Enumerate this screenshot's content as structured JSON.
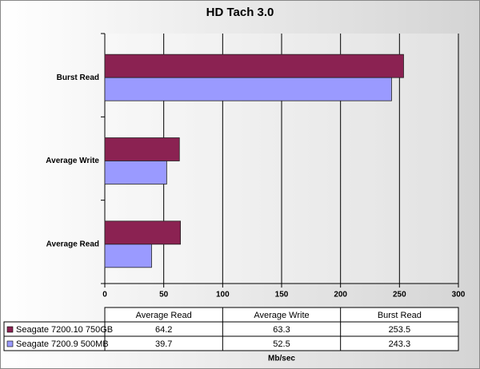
{
  "chart_data": {
    "type": "bar",
    "orientation": "horizontal",
    "title": "HD Tach 3.0",
    "x_label": "Mb/sec",
    "categories": [
      "Average Read",
      "Average Write",
      "Burst Read"
    ],
    "series": [
      {
        "name": "Seagate 7200.10 750GB",
        "color": "#8b2252",
        "values": [
          64.2,
          63.3,
          253.5
        ]
      },
      {
        "name": "Seagate 7200.9 500MB",
        "color": "#9a9aff",
        "values": [
          39.7,
          52.5,
          243.3
        ]
      }
    ],
    "xlim": [
      0,
      300
    ],
    "xticks": [
      0,
      50,
      100,
      150,
      200,
      250,
      300
    ],
    "grid": true,
    "data_table": true
  }
}
